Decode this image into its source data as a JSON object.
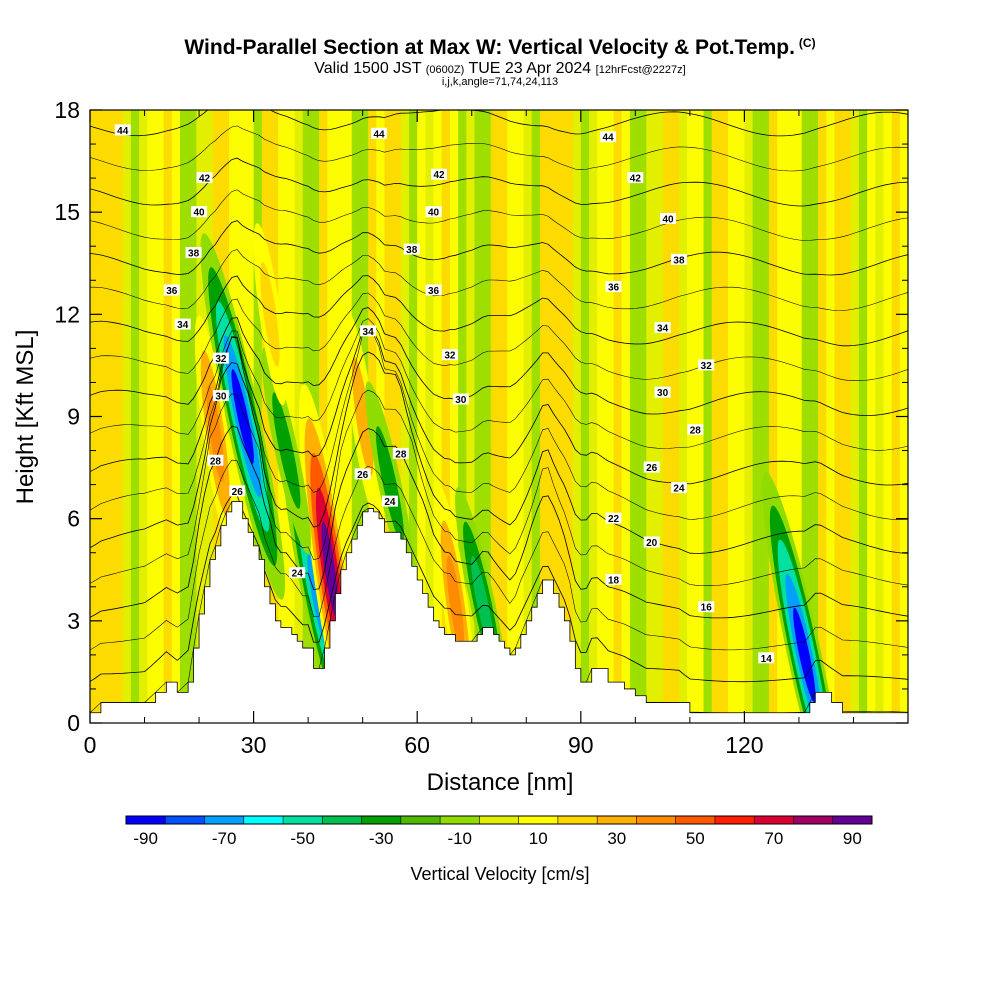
{
  "chart_data": {
    "type": "heatmap",
    "title": "Wind-Parallel Section at Max W: Vertical Velocity & Pot.Temp.",
    "title_units": "(C)",
    "subtitle_main": "Valid 1500 JST",
    "subtitle_utc": "(0600Z)",
    "subtitle_date": "TUE 23 Apr 2024",
    "subtitle_forecast": "[12hrFcst@2227z]",
    "info_line": "i,j,k,angle=71,74,24,113",
    "xlabel": "Distance [nm]",
    "ylabel": "Height [Kft MSL]",
    "xlim": [
      0,
      150
    ],
    "ylim": [
      0,
      18
    ],
    "x_ticks": [
      "0",
      "30",
      "60",
      "90",
      "120"
    ],
    "x_tick_values": [
      0,
      30,
      60,
      90,
      120
    ],
    "y_ticks": [
      "0",
      "3",
      "6",
      "9",
      "12",
      "15",
      "18"
    ],
    "y_tick_values": [
      0,
      3,
      6,
      9,
      12,
      15,
      18
    ],
    "colorbar": {
      "title": "Vertical Velocity [cm/s]",
      "labels": [
        "-90",
        "-70",
        "-50",
        "-30",
        "-10",
        "10",
        "30",
        "50",
        "70",
        "90"
      ],
      "colors": [
        "#0000ff",
        "#0050ff",
        "#00a0ff",
        "#00ffff",
        "#00e0a0",
        "#00c050",
        "#00a000",
        "#50b800",
        "#90dc00",
        "#e0f000",
        "#ffff00",
        "#ffd800",
        "#ffb000",
        "#ff8c00",
        "#ff5a00",
        "#ff1e00",
        "#dc0032",
        "#a00064",
        "#640096"
      ]
    },
    "terrain": {
      "x": [
        0,
        2,
        3,
        5,
        8,
        10,
        12,
        14,
        16,
        18,
        19,
        20,
        21,
        22,
        23,
        24,
        25,
        26,
        27,
        28,
        29,
        30,
        31,
        32,
        33,
        34,
        35,
        36,
        37,
        38,
        39,
        40,
        41,
        42,
        43,
        44,
        45,
        46,
        47,
        48,
        49,
        50,
        51,
        52,
        53,
        54,
        55,
        56,
        57,
        58,
        59,
        60,
        61,
        62,
        63,
        64,
        65,
        66,
        67,
        68,
        69,
        70,
        71,
        72,
        73,
        74,
        75,
        76,
        77,
        78,
        79,
        80,
        81,
        82,
        83,
        84,
        85,
        86,
        87,
        88,
        89,
        90,
        91,
        92,
        93,
        95,
        98,
        100,
        102,
        104,
        106,
        108,
        110,
        112,
        115,
        120,
        125,
        128,
        130,
        131,
        132,
        133,
        134,
        136,
        138,
        140,
        142,
        145,
        148,
        150
      ],
      "z": [
        0.3,
        0.6,
        0.6,
        0.6,
        0.6,
        0.6,
        0.9,
        1.2,
        0.9,
        1.2,
        2.2,
        3.2,
        4.0,
        4.8,
        5.2,
        5.8,
        6.2,
        6.5,
        6.5,
        6.0,
        5.6,
        5.2,
        4.8,
        4.0,
        3.5,
        3.0,
        2.8,
        2.8,
        2.6,
        2.4,
        2.2,
        2.2,
        1.6,
        1.6,
        2.2,
        3.0,
        3.8,
        4.5,
        5.0,
        5.4,
        5.8,
        6.2,
        6.3,
        6.2,
        6.0,
        5.6,
        5.6,
        5.6,
        5.4,
        5.0,
        4.6,
        4.2,
        3.8,
        3.4,
        3.0,
        2.8,
        2.6,
        2.6,
        2.4,
        2.4,
        2.4,
        2.4,
        2.6,
        2.8,
        2.8,
        2.6,
        2.4,
        2.2,
        2.0,
        2.2,
        2.6,
        3.0,
        3.4,
        3.8,
        4.2,
        4.2,
        3.8,
        3.4,
        3.0,
        2.4,
        1.6,
        1.2,
        1.2,
        1.6,
        1.6,
        1.2,
        1.0,
        0.8,
        0.6,
        0.6,
        0.6,
        0.6,
        0.3,
        0.3,
        0.3,
        0.3,
        0.3,
        0.3,
        0.3,
        0.3,
        0.6,
        0.9,
        0.9,
        0.6,
        0.3,
        0.3,
        0.3,
        0.3,
        0.3,
        0.3
      ]
    },
    "vertical_velocity_features": [
      {
        "x": 28,
        "z": 9.0,
        "value": -90
      },
      {
        "x": 42,
        "z": 3.5,
        "value": -70
      },
      {
        "x": 44,
        "z": 4.5,
        "value": 90
      },
      {
        "x": 72,
        "z": 3.5,
        "value": -40
      },
      {
        "x": 131,
        "z": 2.0,
        "value": -90
      },
      {
        "x": 36,
        "z": 8.0,
        "value": -30
      },
      {
        "x": 23,
        "z": 8.5,
        "value": 40
      },
      {
        "x": 50,
        "z": 9.0,
        "value": 30
      },
      {
        "x": 67,
        "z": 3.5,
        "value": 40
      },
      {
        "x": 33,
        "z": 12.0,
        "value": 20
      },
      {
        "x": 55,
        "z": 7.0,
        "value": -30
      }
    ],
    "theta_contours": [
      {
        "value": 14,
        "label": "14"
      },
      {
        "value": 16,
        "label": "16"
      },
      {
        "value": 18,
        "label": "18"
      },
      {
        "value": 20,
        "label": "20"
      },
      {
        "value": 22,
        "label": "22"
      },
      {
        "value": 24,
        "label": "24"
      },
      {
        "value": 26,
        "label": "26"
      },
      {
        "value": 28,
        "label": "28"
      },
      {
        "value": 30,
        "label": "30"
      },
      {
        "value": 32,
        "label": "32"
      },
      {
        "value": 34,
        "label": "34"
      },
      {
        "value": 36,
        "label": "36"
      },
      {
        "value": 38,
        "label": "38"
      },
      {
        "value": 40,
        "label": "40"
      },
      {
        "value": 42,
        "label": "42"
      },
      {
        "value": 44,
        "label": "44"
      }
    ],
    "theta_contour_labels": [
      {
        "x": 6,
        "z": 17.4,
        "label": "44"
      },
      {
        "x": 53,
        "z": 17.3,
        "label": "44"
      },
      {
        "x": 95,
        "z": 17.2,
        "label": "44"
      },
      {
        "x": 21,
        "z": 16.0,
        "label": "42"
      },
      {
        "x": 64,
        "z": 16.1,
        "label": "42"
      },
      {
        "x": 100,
        "z": 16.0,
        "label": "42"
      },
      {
        "x": 20,
        "z": 15.0,
        "label": "40"
      },
      {
        "x": 63,
        "z": 15.0,
        "label": "40"
      },
      {
        "x": 106,
        "z": 14.8,
        "label": "40"
      },
      {
        "x": 19,
        "z": 13.8,
        "label": "38"
      },
      {
        "x": 59,
        "z": 13.9,
        "label": "38"
      },
      {
        "x": 108,
        "z": 13.6,
        "label": "38"
      },
      {
        "x": 15,
        "z": 12.7,
        "label": "36"
      },
      {
        "x": 63,
        "z": 12.7,
        "label": "36"
      },
      {
        "x": 96,
        "z": 12.8,
        "label": "36"
      },
      {
        "x": 17,
        "z": 11.7,
        "label": "34"
      },
      {
        "x": 51,
        "z": 11.5,
        "label": "34"
      },
      {
        "x": 105,
        "z": 11.6,
        "label": "34"
      },
      {
        "x": 24,
        "z": 10.7,
        "label": "32"
      },
      {
        "x": 66,
        "z": 10.8,
        "label": "32"
      },
      {
        "x": 113,
        "z": 10.5,
        "label": "32"
      },
      {
        "x": 24,
        "z": 9.6,
        "label": "30"
      },
      {
        "x": 68,
        "z": 9.5,
        "label": "30"
      },
      {
        "x": 105,
        "z": 9.7,
        "label": "30"
      },
      {
        "x": 23,
        "z": 7.7,
        "label": "28"
      },
      {
        "x": 57,
        "z": 7.9,
        "label": "28"
      },
      {
        "x": 111,
        "z": 8.6,
        "label": "28"
      },
      {
        "x": 27,
        "z": 6.8,
        "label": "26"
      },
      {
        "x": 50,
        "z": 7.3,
        "label": "26"
      },
      {
        "x": 103,
        "z": 7.5,
        "label": "26"
      },
      {
        "x": 55,
        "z": 6.5,
        "label": "24"
      },
      {
        "x": 108,
        "z": 6.9,
        "label": "24"
      },
      {
        "x": 96,
        "z": 6.0,
        "label": "22"
      },
      {
        "x": 38,
        "z": 4.4,
        "label": "24"
      },
      {
        "x": 103,
        "z": 5.3,
        "label": "20"
      },
      {
        "x": 96,
        "z": 4.2,
        "label": "18"
      },
      {
        "x": 113,
        "z": 3.4,
        "label": "16"
      },
      {
        "x": 124,
        "z": 1.9,
        "label": "14"
      }
    ]
  }
}
